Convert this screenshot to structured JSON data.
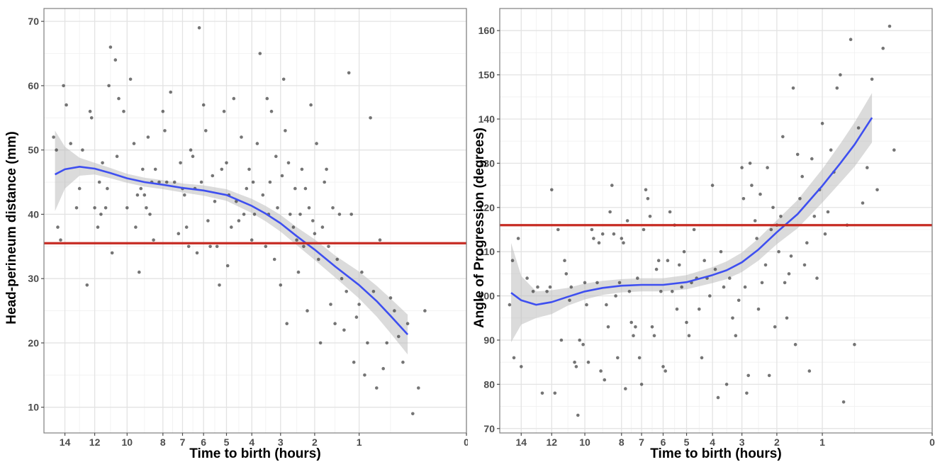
{
  "chart_data": [
    {
      "type": "scatter",
      "xlabel": "Time to birth (hours)",
      "ylabel": "Head-perineum distance (mm)",
      "x_scale": "sqrt-reversed",
      "xlim": [
        0,
        15.5
      ],
      "ylim": [
        6,
        72
      ],
      "x_ticks": [
        14,
        12,
        10,
        8,
        7,
        6,
        5,
        4,
        3,
        2,
        1,
        0
      ],
      "y_ticks": [
        10,
        20,
        30,
        40,
        50,
        60,
        70
      ],
      "grid": true,
      "colors": {
        "points": "#3a3a3a",
        "smooth": "#3e4ff0",
        "band": "#bdbdbd",
        "reference": "#c62b23"
      },
      "reference_line": {
        "y": 35.5
      },
      "smooth": {
        "x": [
          14.7,
          14,
          13,
          12,
          11,
          10,
          9,
          8,
          7,
          6,
          5,
          4,
          3.5,
          3,
          2.5,
          2,
          1.5,
          1,
          0.7,
          0.5,
          0.3
        ],
        "y": [
          46.2,
          47.0,
          47.4,
          47.1,
          46.4,
          45.6,
          45.0,
          44.6,
          44.1,
          43.7,
          43.0,
          41.3,
          40.1,
          38.6,
          36.6,
          34.5,
          31.9,
          29.0,
          26.5,
          24.2,
          21.3
        ],
        "lower": [
          40.5,
          44.0,
          46.0,
          46.2,
          45.6,
          44.9,
          44.3,
          43.9,
          43.4,
          42.9,
          42.1,
          40.2,
          38.9,
          37.3,
          35.2,
          32.9,
          30.2,
          26.9,
          24.1,
          21.5,
          18.2
        ],
        "upper": [
          53.0,
          50.5,
          48.8,
          48.0,
          47.2,
          46.3,
          45.7,
          45.3,
          44.8,
          44.5,
          43.9,
          42.4,
          41.3,
          39.9,
          38.0,
          36.1,
          33.6,
          31.1,
          28.9,
          26.9,
          24.4
        ]
      },
      "points": [
        [
          14.8,
          52
        ],
        [
          14.6,
          50
        ],
        [
          14.5,
          38
        ],
        [
          14.3,
          36
        ],
        [
          14.1,
          60
        ],
        [
          13.9,
          57
        ],
        [
          13.6,
          51
        ],
        [
          13.2,
          41
        ],
        [
          13,
          44
        ],
        [
          12.8,
          50
        ],
        [
          12.5,
          29
        ],
        [
          12.3,
          56
        ],
        [
          12.2,
          55
        ],
        [
          12,
          41
        ],
        [
          11.8,
          38
        ],
        [
          11.7,
          45
        ],
        [
          11.6,
          40
        ],
        [
          11.5,
          48
        ],
        [
          11.3,
          41
        ],
        [
          11.2,
          44
        ],
        [
          11.1,
          60
        ],
        [
          11,
          66
        ],
        [
          10.9,
          34
        ],
        [
          10.7,
          64
        ],
        [
          10.6,
          49
        ],
        [
          10.5,
          58
        ],
        [
          10.2,
          56
        ],
        [
          10,
          41
        ],
        [
          9.8,
          61
        ],
        [
          9.6,
          51
        ],
        [
          9.5,
          38
        ],
        [
          9.4,
          43
        ],
        [
          9.3,
          31
        ],
        [
          9.2,
          44
        ],
        [
          9.1,
          47
        ],
        [
          9,
          43
        ],
        [
          8.9,
          41
        ],
        [
          8.8,
          52
        ],
        [
          8.7,
          40
        ],
        [
          8.6,
          45
        ],
        [
          8.5,
          36
        ],
        [
          8.4,
          47
        ],
        [
          8.2,
          45
        ],
        [
          8,
          56
        ],
        [
          7.9,
          53
        ],
        [
          7.8,
          45
        ],
        [
          7.6,
          59
        ],
        [
          7.4,
          45
        ],
        [
          7.2,
          37
        ],
        [
          7.1,
          48
        ],
        [
          7,
          44
        ],
        [
          6.9,
          43
        ],
        [
          6.8,
          38
        ],
        [
          6.7,
          35
        ],
        [
          6.6,
          50
        ],
        [
          6.5,
          49
        ],
        [
          6.4,
          44
        ],
        [
          6.3,
          34
        ],
        [
          6.2,
          69
        ],
        [
          6.1,
          45
        ],
        [
          6,
          57
        ],
        [
          5.9,
          53
        ],
        [
          5.8,
          39
        ],
        [
          5.7,
          35
        ],
        [
          5.6,
          46
        ],
        [
          5.5,
          42
        ],
        [
          5.4,
          35
        ],
        [
          5.3,
          29
        ],
        [
          5.2,
          47
        ],
        [
          5.1,
          56
        ],
        [
          5,
          48
        ],
        [
          4.95,
          32
        ],
        [
          4.9,
          43
        ],
        [
          4.8,
          38
        ],
        [
          4.7,
          58
        ],
        [
          4.6,
          42
        ],
        [
          4.5,
          39
        ],
        [
          4.4,
          52
        ],
        [
          4.3,
          40
        ],
        [
          4.2,
          44
        ],
        [
          4.1,
          47
        ],
        [
          4,
          36
        ],
        [
          3.95,
          45
        ],
        [
          3.9,
          40
        ],
        [
          3.8,
          51
        ],
        [
          3.7,
          65
        ],
        [
          3.6,
          43
        ],
        [
          3.5,
          35
        ],
        [
          3.45,
          58
        ],
        [
          3.4,
          40
        ],
        [
          3.35,
          45
        ],
        [
          3.3,
          56
        ],
        [
          3.2,
          33
        ],
        [
          3.15,
          49
        ],
        [
          3.1,
          41
        ],
        [
          3,
          29
        ],
        [
          2.95,
          46
        ],
        [
          2.9,
          61
        ],
        [
          2.85,
          53
        ],
        [
          2.8,
          23
        ],
        [
          2.75,
          48
        ],
        [
          2.7,
          40
        ],
        [
          2.6,
          38
        ],
        [
          2.55,
          44
        ],
        [
          2.5,
          36
        ],
        [
          2.45,
          31
        ],
        [
          2.4,
          40
        ],
        [
          2.35,
          47
        ],
        [
          2.3,
          35
        ],
        [
          2.25,
          44
        ],
        [
          2.2,
          25
        ],
        [
          2.15,
          41
        ],
        [
          2.1,
          57
        ],
        [
          2.05,
          39
        ],
        [
          2,
          37
        ],
        [
          1.95,
          51
        ],
        [
          1.9,
          33
        ],
        [
          1.85,
          20
        ],
        [
          1.8,
          38
        ],
        [
          1.75,
          45
        ],
        [
          1.7,
          47
        ],
        [
          1.65,
          35
        ],
        [
          1.6,
          26
        ],
        [
          1.55,
          41
        ],
        [
          1.5,
          23
        ],
        [
          1.45,
          33
        ],
        [
          1.4,
          40
        ],
        [
          1.35,
          30
        ],
        [
          1.3,
          22
        ],
        [
          1.25,
          28
        ],
        [
          1.2,
          62
        ],
        [
          1.15,
          40
        ],
        [
          1.1,
          17
        ],
        [
          1.05,
          24
        ],
        [
          1,
          26
        ],
        [
          0.95,
          31
        ],
        [
          0.9,
          15
        ],
        [
          0.85,
          20
        ],
        [
          0.8,
          55
        ],
        [
          0.75,
          28
        ],
        [
          0.7,
          13
        ],
        [
          0.65,
          36
        ],
        [
          0.6,
          16
        ],
        [
          0.55,
          20
        ],
        [
          0.5,
          27
        ],
        [
          0.45,
          25
        ],
        [
          0.4,
          21
        ],
        [
          0.35,
          17
        ],
        [
          0.3,
          23
        ],
        [
          0.25,
          9
        ],
        [
          0.2,
          13
        ],
        [
          0.15,
          25
        ]
      ]
    },
    {
      "type": "scatter",
      "xlabel": "Time to birth (hours)",
      "ylabel": "Angle of Progression (degrees)",
      "x_scale": "sqrt-reversed",
      "xlim": [
        0,
        15.5
      ],
      "ylim": [
        69,
        165
      ],
      "x_ticks": [
        14,
        12,
        10,
        8,
        7,
        6,
        5,
        4,
        3,
        2,
        1,
        0
      ],
      "y_ticks": [
        70,
        80,
        90,
        100,
        110,
        120,
        130,
        140,
        150,
        160
      ],
      "grid": true,
      "colors": {
        "points": "#3a3a3a",
        "smooth": "#3e4ff0",
        "band": "#bdbdbd",
        "reference": "#c62b23"
      },
      "reference_line": {
        "y": 116
      },
      "smooth": {
        "x": [
          14.7,
          14,
          13,
          12,
          11,
          10,
          9,
          8,
          7,
          6,
          5,
          4,
          3.5,
          3,
          2.5,
          2,
          1.5,
          1,
          0.7,
          0.5,
          0.3
        ],
        "y": [
          100.7,
          99.0,
          98.0,
          98.6,
          99.8,
          101.0,
          101.8,
          102.3,
          102.5,
          102.5,
          103.1,
          104.7,
          105.8,
          107.6,
          110.5,
          114.4,
          118.5,
          124.9,
          130.0,
          134.2,
          140.3
        ],
        "lower": [
          89.5,
          93.5,
          95.0,
          95.9,
          97.8,
          99.2,
          100.2,
          100.8,
          101.0,
          101.0,
          101.5,
          102.9,
          103.8,
          105.4,
          108.0,
          111.7,
          115.3,
          121.1,
          125.6,
          129.2,
          134.7
        ],
        "upper": [
          112.0,
          104.5,
          101.0,
          101.3,
          101.8,
          102.8,
          103.4,
          103.8,
          104.0,
          104.0,
          104.7,
          106.5,
          107.8,
          109.8,
          113.0,
          117.1,
          121.7,
          128.7,
          134.4,
          139.2,
          145.9
        ]
      },
      "points": [
        [
          14.8,
          98
        ],
        [
          14.6,
          108
        ],
        [
          14.5,
          86
        ],
        [
          14.2,
          113
        ],
        [
          14,
          84
        ],
        [
          13.6,
          104
        ],
        [
          13.2,
          101
        ],
        [
          12.9,
          102
        ],
        [
          12.6,
          78
        ],
        [
          12.3,
          101
        ],
        [
          12.1,
          102
        ],
        [
          12,
          124
        ],
        [
          11.8,
          78
        ],
        [
          11.6,
          115
        ],
        [
          11.4,
          90
        ],
        [
          11.2,
          108
        ],
        [
          11.1,
          105
        ],
        [
          10.9,
          99
        ],
        [
          10.8,
          102
        ],
        [
          10.6,
          85
        ],
        [
          10.5,
          84
        ],
        [
          10.4,
          73
        ],
        [
          10.3,
          90
        ],
        [
          10.1,
          89
        ],
        [
          10,
          103
        ],
        [
          9.9,
          98
        ],
        [
          9.8,
          85
        ],
        [
          9.6,
          115
        ],
        [
          9.5,
          113
        ],
        [
          9.3,
          103
        ],
        [
          9.2,
          112
        ],
        [
          9.1,
          83
        ],
        [
          9,
          114
        ],
        [
          8.9,
          81
        ],
        [
          8.8,
          98
        ],
        [
          8.7,
          93
        ],
        [
          8.6,
          119
        ],
        [
          8.5,
          125
        ],
        [
          8.4,
          114
        ],
        [
          8.3,
          100
        ],
        [
          8.2,
          86
        ],
        [
          8.1,
          103
        ],
        [
          8,
          113
        ],
        [
          7.9,
          112
        ],
        [
          7.8,
          79
        ],
        [
          7.7,
          117
        ],
        [
          7.6,
          101
        ],
        [
          7.5,
          94
        ],
        [
          7.4,
          91
        ],
        [
          7.3,
          93
        ],
        [
          7.2,
          104
        ],
        [
          7.1,
          86
        ],
        [
          7,
          80
        ],
        [
          6.9,
          115
        ],
        [
          6.8,
          124
        ],
        [
          6.7,
          122
        ],
        [
          6.6,
          118
        ],
        [
          6.5,
          93
        ],
        [
          6.4,
          91
        ],
        [
          6.3,
          106
        ],
        [
          6.2,
          108
        ],
        [
          6.1,
          101
        ],
        [
          6,
          84
        ],
        [
          5.9,
          83
        ],
        [
          5.8,
          108
        ],
        [
          5.7,
          119
        ],
        [
          5.6,
          101
        ],
        [
          5.5,
          116
        ],
        [
          5.4,
          97
        ],
        [
          5.3,
          107
        ],
        [
          5.2,
          102
        ],
        [
          5.1,
          110
        ],
        [
          5,
          94
        ],
        [
          4.9,
          91
        ],
        [
          4.8,
          103
        ],
        [
          4.7,
          115
        ],
        [
          4.6,
          104
        ],
        [
          4.5,
          97
        ],
        [
          4.4,
          86
        ],
        [
          4.3,
          108
        ],
        [
          4.2,
          104
        ],
        [
          4.1,
          100
        ],
        [
          4,
          125
        ],
        [
          3.9,
          106
        ],
        [
          3.8,
          77
        ],
        [
          3.7,
          110
        ],
        [
          3.6,
          102
        ],
        [
          3.5,
          80
        ],
        [
          3.4,
          104
        ],
        [
          3.3,
          95
        ],
        [
          3.2,
          91
        ],
        [
          3.1,
          99
        ],
        [
          3,
          129
        ],
        [
          2.95,
          122
        ],
        [
          2.9,
          102
        ],
        [
          2.85,
          78
        ],
        [
          2.8,
          82
        ],
        [
          2.75,
          130
        ],
        [
          2.7,
          125
        ],
        [
          2.6,
          117
        ],
        [
          2.55,
          113
        ],
        [
          2.5,
          97
        ],
        [
          2.45,
          123
        ],
        [
          2.4,
          103
        ],
        [
          2.3,
          107
        ],
        [
          2.25,
          129
        ],
        [
          2.2,
          82
        ],
        [
          2.15,
          115
        ],
        [
          2.1,
          120
        ],
        [
          2.05,
          93
        ],
        [
          2,
          116
        ],
        [
          1.95,
          110
        ],
        [
          1.9,
          118
        ],
        [
          1.85,
          136
        ],
        [
          1.8,
          103
        ],
        [
          1.75,
          95
        ],
        [
          1.7,
          105
        ],
        [
          1.65,
          109
        ],
        [
          1.6,
          147
        ],
        [
          1.55,
          89
        ],
        [
          1.5,
          132
        ],
        [
          1.45,
          122
        ],
        [
          1.4,
          127
        ],
        [
          1.35,
          107
        ],
        [
          1.3,
          112
        ],
        [
          1.25,
          83
        ],
        [
          1.2,
          131
        ],
        [
          1.15,
          118
        ],
        [
          1.1,
          104
        ],
        [
          1.05,
          124
        ],
        [
          1,
          139
        ],
        [
          0.95,
          114
        ],
        [
          0.9,
          119
        ],
        [
          0.85,
          133
        ],
        [
          0.8,
          128
        ],
        [
          0.75,
          147
        ],
        [
          0.7,
          150
        ],
        [
          0.65,
          76
        ],
        [
          0.6,
          116
        ],
        [
          0.55,
          158
        ],
        [
          0.5,
          89
        ],
        [
          0.45,
          138
        ],
        [
          0.4,
          121
        ],
        [
          0.35,
          129
        ],
        [
          0.3,
          149
        ],
        [
          0.25,
          124
        ],
        [
          0.2,
          156
        ],
        [
          0.15,
          161
        ],
        [
          0.12,
          133
        ]
      ]
    }
  ]
}
